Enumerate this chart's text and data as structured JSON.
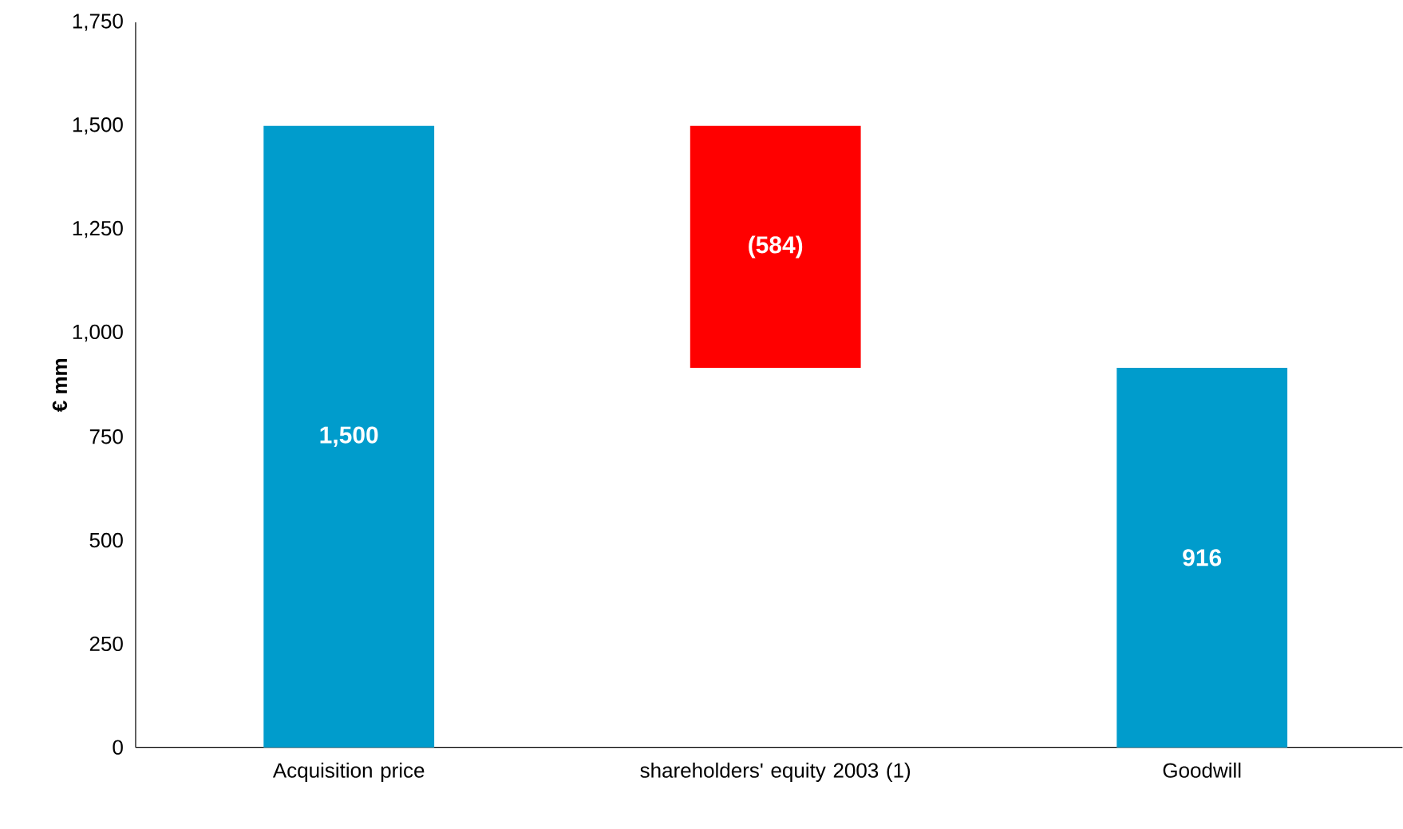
{
  "chart_data": {
    "type": "bar",
    "categories": [
      "Acquisition price",
      "shareholders' equity 2003 (1)",
      "Goodwill"
    ],
    "values": [
      1500,
      -584,
      916
    ],
    "base": [
      0,
      1500,
      0
    ],
    "colors": [
      "#009ccc",
      "#ff0000",
      "#009ccc"
    ],
    "value_labels": [
      "1,500",
      "(584)",
      "916"
    ],
    "ylabel": "€ mm",
    "ylim": [
      0,
      1750
    ],
    "yticks": [
      0,
      250,
      500,
      750,
      {
        "value": 1000,
        "label": "1,000"
      },
      {
        "value": 1250,
        "label": "1,250"
      },
      {
        "value": 1500,
        "label": "1,500"
      },
      {
        "value": 1750,
        "label": "1,750"
      }
    ]
  }
}
